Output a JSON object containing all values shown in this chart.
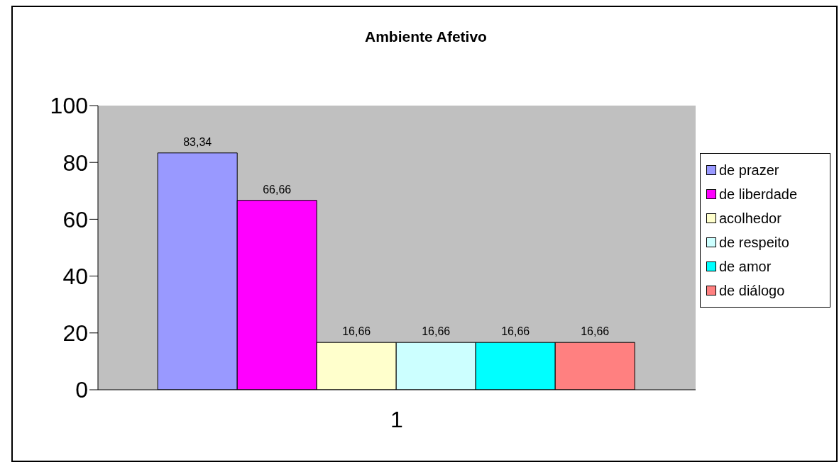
{
  "chart_data": {
    "type": "bar",
    "title": "Ambiente Afetivo",
    "categories": [
      "1"
    ],
    "series": [
      {
        "name": "de prazer",
        "color": "#9999ff",
        "values": [
          83.34
        ],
        "value_labels": [
          "83,34"
        ]
      },
      {
        "name": "de liberdade",
        "color": "#ff00ff",
        "values": [
          66.66
        ],
        "value_labels": [
          "66,66"
        ]
      },
      {
        "name": "acolhedor",
        "color": "#ffffcc",
        "values": [
          16.66
        ],
        "value_labels": [
          "16,66"
        ]
      },
      {
        "name": "de respeito",
        "color": "#ccffff",
        "values": [
          16.66
        ],
        "value_labels": [
          "16,66"
        ]
      },
      {
        "name": "de amor",
        "color": "#00ffff",
        "values": [
          16.66
        ],
        "value_labels": [
          "16,66"
        ]
      },
      {
        "name": "de diálogo",
        "color": "#ff8080",
        "values": [
          16.66
        ],
        "value_labels": [
          "16,66"
        ]
      }
    ],
    "ylim": [
      0,
      100
    ],
    "yticks": [
      0,
      20,
      40,
      60,
      80,
      100
    ],
    "grid": false,
    "legend": "right"
  }
}
